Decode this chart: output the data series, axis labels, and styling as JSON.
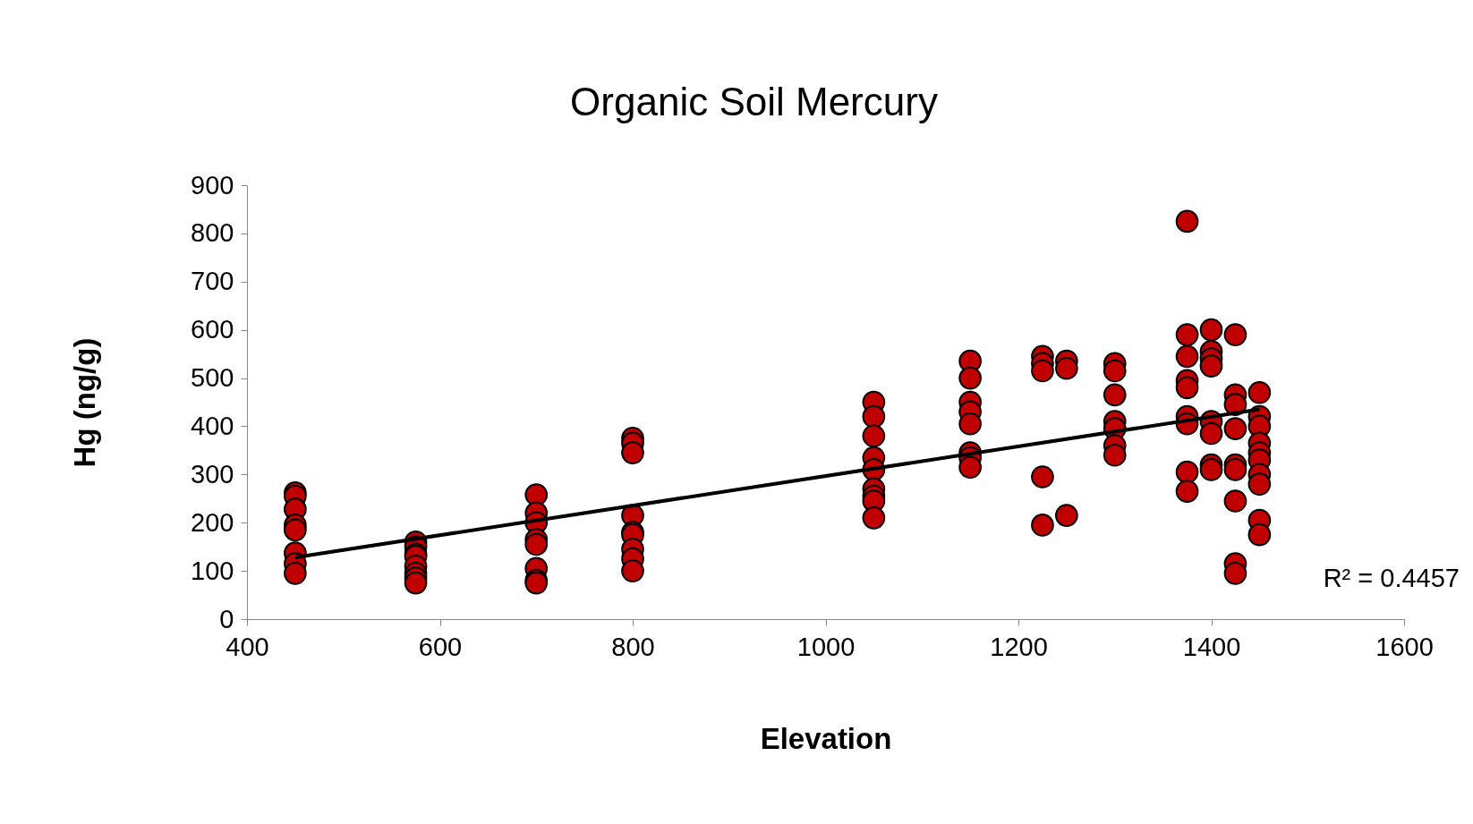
{
  "chart_data": {
    "type": "scatter",
    "title": "Organic Soil Mercury",
    "xlabel": "Elevation",
    "ylabel": "Hg (ng/g)",
    "xlim": [
      400,
      1600
    ],
    "xticks": [
      400,
      600,
      800,
      1000,
      1200,
      1400,
      1600
    ],
    "ylim": [
      0,
      900
    ],
    "yticks": [
      0,
      100,
      200,
      300,
      400,
      500,
      600,
      700,
      800,
      900
    ],
    "grid": false,
    "annotations": [
      "R² = 0.4457"
    ],
    "series": [
      {
        "marker": "circle",
        "color": "#c00000",
        "x": [
          450,
          450,
          450,
          450,
          450,
          450,
          450,
          450,
          575,
          575,
          575,
          575,
          575,
          575,
          575,
          575,
          700,
          700,
          700,
          700,
          700,
          700,
          700,
          700,
          800,
          800,
          800,
          800,
          800,
          800,
          800,
          800,
          800,
          1050,
          1050,
          1050,
          1050,
          1050,
          1050,
          1050,
          1050,
          1050,
          1150,
          1150,
          1150,
          1150,
          1150,
          1150,
          1150,
          1150,
          1225,
          1225,
          1225,
          1225,
          1225,
          1250,
          1250,
          1250,
          1300,
          1300,
          1300,
          1300,
          1300,
          1300,
          1300,
          1375,
          1375,
          1375,
          1375,
          1375,
          1375,
          1375,
          1375,
          1375,
          1400,
          1400,
          1400,
          1400,
          1400,
          1400,
          1400,
          1400,
          1425,
          1425,
          1425,
          1425,
          1425,
          1425,
          1425,
          1425,
          1425,
          1450,
          1450,
          1450,
          1450,
          1450,
          1450,
          1450,
          1450,
          1450,
          1450
        ],
        "values": [
          262,
          255,
          228,
          195,
          185,
          137,
          115,
          95,
          160,
          150,
          135,
          130,
          110,
          95,
          85,
          75,
          258,
          220,
          200,
          165,
          155,
          105,
          80,
          75,
          375,
          365,
          345,
          215,
          180,
          175,
          145,
          125,
          100,
          450,
          420,
          380,
          335,
          310,
          270,
          255,
          245,
          210,
          535,
          500,
          450,
          430,
          405,
          345,
          335,
          315,
          545,
          530,
          515,
          295,
          195,
          535,
          520,
          215,
          530,
          515,
          465,
          410,
          395,
          360,
          340,
          825,
          590,
          545,
          495,
          480,
          420,
          405,
          305,
          265,
          600,
          555,
          540,
          525,
          410,
          385,
          320,
          310,
          590,
          465,
          445,
          395,
          320,
          310,
          245,
          115,
          95,
          470,
          420,
          400,
          365,
          345,
          330,
          300,
          280,
          205,
          175
        ]
      },
      {
        "type": "line",
        "color": "#000000",
        "x": [
          450,
          1450
        ],
        "values": [
          128,
          435
        ]
      }
    ]
  }
}
